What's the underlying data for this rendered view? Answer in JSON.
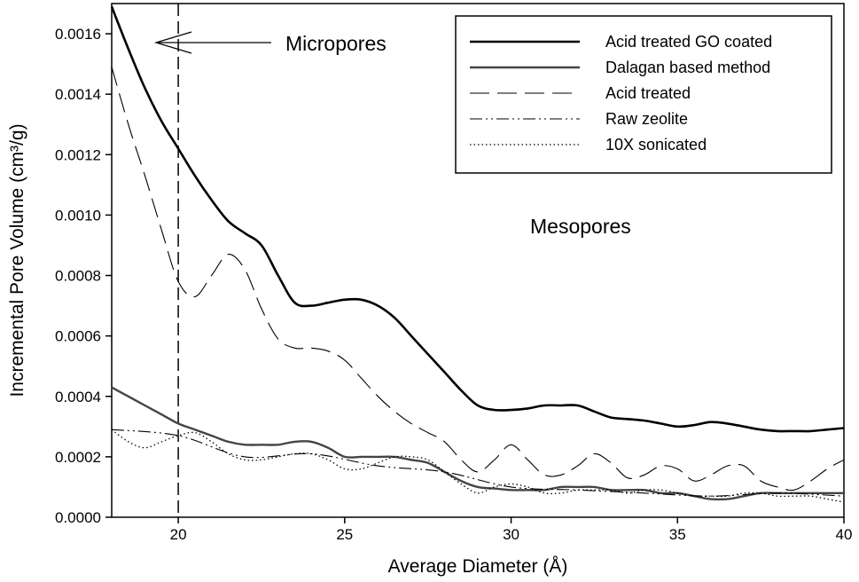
{
  "chart_data": {
    "type": "line",
    "xlabel": "Average Diameter (Å)",
    "ylabel": "Incremental Pore Volume (cm³/g)",
    "xlim": [
      18,
      40
    ],
    "ylim": [
      0,
      0.0017
    ],
    "x_ticks": [
      20,
      25,
      30,
      35,
      40
    ],
    "y_ticks": [
      "0.0000",
      "0.0002",
      "0.0004",
      "0.0006",
      "0.0008",
      "0.0010",
      "0.0012",
      "0.0014",
      "0.0016"
    ],
    "legend_position": "top-right",
    "annotations": {
      "micropores": "Micropores",
      "mesopores": "Mesopores",
      "divider_x": 20
    },
    "series": [
      {
        "name": "Acid treated GO coated",
        "style": "solid-thick",
        "x": [
          18,
          18.5,
          19,
          19.5,
          20,
          20.5,
          21,
          21.5,
          22,
          22.5,
          23,
          23.5,
          24,
          24.5,
          25,
          25.5,
          26,
          26.5,
          27,
          27.5,
          28,
          28.5,
          29,
          29.5,
          30,
          30.5,
          31,
          31.5,
          32,
          32.5,
          33,
          33.5,
          34,
          34.5,
          35,
          35.5,
          36,
          36.5,
          37,
          37.5,
          38,
          38.5,
          39,
          39.5,
          40
        ],
        "y": [
          0.00169,
          0.00155,
          0.00142,
          0.00131,
          0.00122,
          0.00113,
          0.00105,
          0.00098,
          0.00094,
          0.0009,
          0.0008,
          0.00071,
          0.0007,
          0.00071,
          0.00072,
          0.00072,
          0.0007,
          0.00066,
          0.0006,
          0.00054,
          0.00048,
          0.00042,
          0.00037,
          0.000355,
          0.000355,
          0.00036,
          0.00037,
          0.00037,
          0.00037,
          0.00035,
          0.00033,
          0.000325,
          0.00032,
          0.00031,
          0.0003,
          0.000305,
          0.000315,
          0.00031,
          0.0003,
          0.00029,
          0.000285,
          0.000285,
          0.000285,
          0.00029,
          0.000295
        ]
      },
      {
        "name": "Dalagan based method",
        "style": "solid",
        "x": [
          18,
          18.5,
          19,
          19.5,
          20,
          20.5,
          21,
          21.5,
          22,
          22.5,
          23,
          23.5,
          24,
          24.5,
          25,
          25.5,
          26,
          26.5,
          27,
          27.5,
          28,
          28.5,
          29,
          29.5,
          30,
          30.5,
          31,
          31.5,
          32,
          32.5,
          33,
          33.5,
          34,
          34.5,
          35,
          35.5,
          36,
          36.5,
          37,
          37.5,
          38,
          38.5,
          39,
          39.5,
          40
        ],
        "y": [
          0.00043,
          0.0004,
          0.00037,
          0.00034,
          0.00031,
          0.00029,
          0.00027,
          0.00025,
          0.00024,
          0.00024,
          0.00024,
          0.00025,
          0.00025,
          0.00023,
          0.0002,
          0.0002,
          0.0002,
          0.0002,
          0.00019,
          0.00018,
          0.00015,
          0.00012,
          0.0001,
          9.5e-05,
          9e-05,
          9e-05,
          9e-05,
          0.0001,
          0.0001,
          0.0001,
          9e-05,
          9e-05,
          9e-05,
          8e-05,
          8e-05,
          7e-05,
          6e-05,
          6e-05,
          7e-05,
          8e-05,
          8e-05,
          8e-05,
          8e-05,
          8e-05,
          8e-05
        ]
      },
      {
        "name": "Acid treated",
        "style": "long-dash",
        "x": [
          18,
          18.5,
          19,
          19.5,
          20,
          20.5,
          21,
          21.5,
          22,
          22.5,
          23,
          23.5,
          24,
          24.5,
          25,
          25.5,
          26,
          26.5,
          27,
          27.5,
          28,
          28.5,
          29,
          29.5,
          30,
          30.5,
          31,
          31.5,
          32,
          32.5,
          33,
          33.5,
          34,
          34.5,
          35,
          35.5,
          36,
          36.5,
          37,
          37.5,
          38,
          38.5,
          39,
          39.5,
          40
        ],
        "y": [
          0.00149,
          0.0013,
          0.00113,
          0.00095,
          0.00078,
          0.00073,
          0.0008,
          0.00087,
          0.00082,
          0.00069,
          0.00059,
          0.00056,
          0.00056,
          0.00055,
          0.00052,
          0.00046,
          0.0004,
          0.00035,
          0.00031,
          0.00028,
          0.00025,
          0.00019,
          0.00015,
          0.00019,
          0.00024,
          0.00019,
          0.00014,
          0.00014,
          0.00017,
          0.00021,
          0.00018,
          0.00013,
          0.00014,
          0.00017,
          0.00016,
          0.00012,
          0.00014,
          0.00017,
          0.00017,
          0.00012,
          0.0001,
          9e-05,
          0.00012,
          0.00016,
          0.00019
        ]
      },
      {
        "name": "Raw zeolite",
        "style": "dash-dot",
        "x": [
          18,
          20,
          22,
          24,
          26,
          28,
          30,
          32,
          34,
          36,
          38,
          40
        ],
        "y": [
          0.00029,
          0.00027,
          0.0002,
          0.00021,
          0.00017,
          0.00015,
          0.0001,
          9e-05,
          8e-05,
          7e-05,
          8e-05,
          7e-05
        ]
      },
      {
        "name": "10X sonicated",
        "style": "dotted",
        "x": [
          18,
          18.5,
          19,
          19.5,
          20,
          20.5,
          21,
          21.5,
          22,
          22.5,
          23,
          23.5,
          24,
          24.5,
          25,
          25.5,
          26,
          26.5,
          27,
          27.5,
          28,
          28.5,
          29,
          29.5,
          30,
          30.5,
          31,
          31.5,
          32,
          32.5,
          33,
          33.5,
          34,
          34.5,
          35,
          35.5,
          36,
          36.5,
          37,
          37.5,
          38,
          38.5,
          39,
          39.5,
          40
        ],
        "y": [
          0.00029,
          0.00025,
          0.00023,
          0.00025,
          0.00027,
          0.00028,
          0.00025,
          0.00021,
          0.00019,
          0.00019,
          0.0002,
          0.00021,
          0.00021,
          0.00019,
          0.00016,
          0.00016,
          0.00018,
          0.0002,
          0.0002,
          0.00019,
          0.00015,
          0.00011,
          8e-05,
          0.0001,
          0.00011,
          0.0001,
          8e-05,
          8e-05,
          9e-05,
          9e-05,
          9e-05,
          8e-05,
          9e-05,
          9e-05,
          8e-05,
          7e-05,
          7e-05,
          7e-05,
          8e-05,
          8e-05,
          7e-05,
          7e-05,
          7e-05,
          6e-05,
          5e-05
        ]
      }
    ]
  }
}
